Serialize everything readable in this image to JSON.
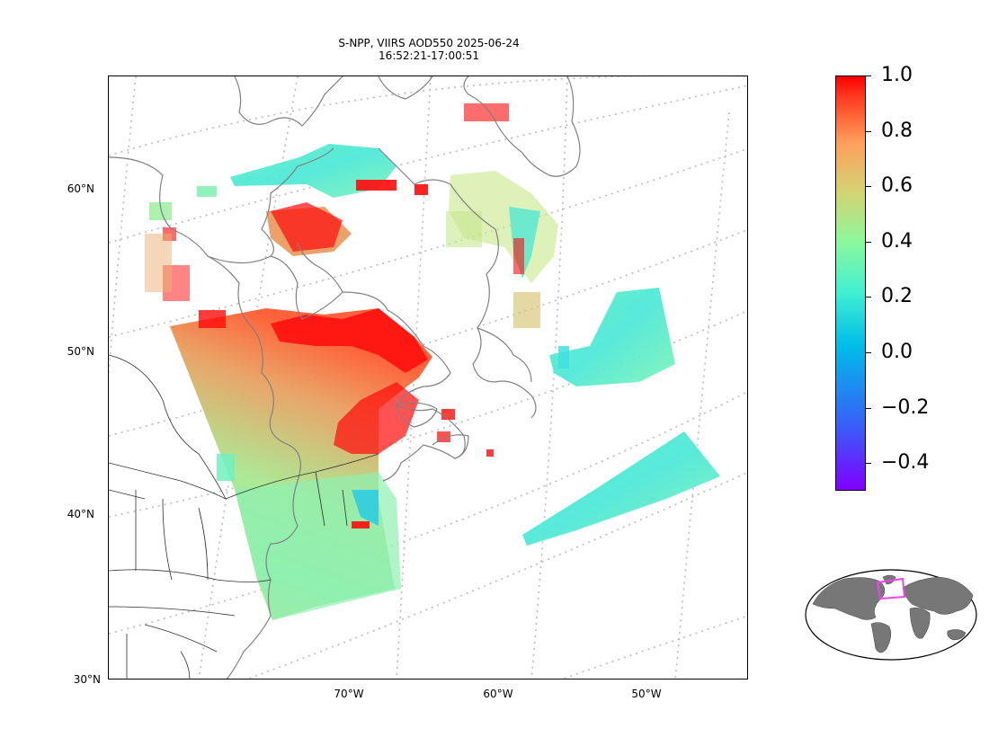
{
  "title_line1": "S-NPP, VIIRS AOD550 2025-06-24",
  "title_line2": "16:52:21-17:00:51",
  "lat_labels": [
    "60°N",
    "50°N",
    "40°N",
    "30°N"
  ],
  "lon_labels": [
    "70°W",
    "60°W",
    "50°W"
  ],
  "colorbar": {
    "min": -0.5,
    "max": 1.0,
    "colormap": "rainbow",
    "ticks": [
      "1.0",
      "0.8",
      "0.6",
      "0.4",
      "0.2",
      "0.0",
      "−0.2",
      "−0.4"
    ]
  },
  "colors": {
    "coastline": "#808080",
    "gridline": "#bbbbbb",
    "land_inset": "#777777",
    "inset_box": "#ee44ee"
  }
}
